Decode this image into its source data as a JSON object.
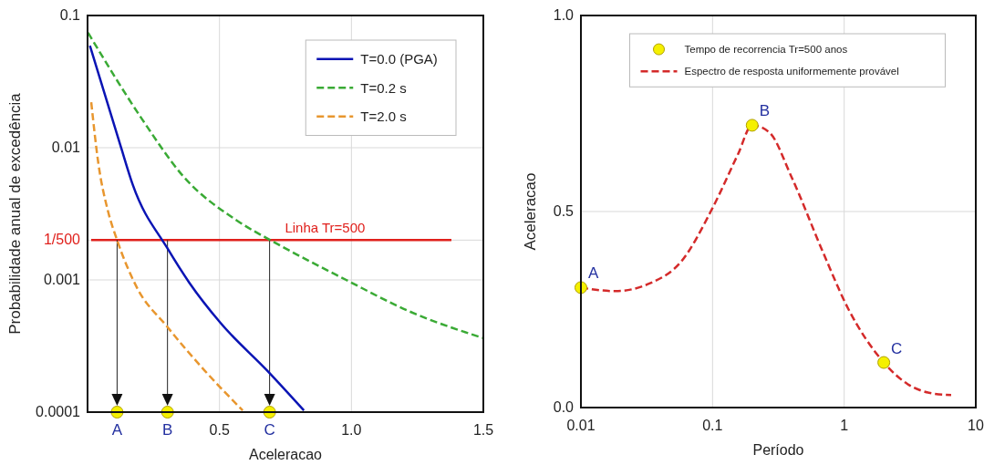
{
  "chart_data": [
    {
      "type": "line",
      "xlabel": "Aceleracao",
      "ylabel": "Probabilidade anual de excedência",
      "log": "y",
      "grid": true,
      "legend": "top right",
      "xlim": [
        0,
        1.5
      ],
      "xticks": [
        0.5,
        {
          "value": 1.0,
          "label": "1.0"
        },
        1.5
      ],
      "ylim": [
        0.0001,
        0.1
      ],
      "yticks": [
        0.1,
        0.01,
        {
          "value": 0.002,
          "label": "1/500"
        },
        0.001,
        0.0001
      ],
      "series": [
        {
          "name": "T=0.0 (PGA)",
          "color": "#0a14b4",
          "line_style": "solid",
          "x": [
            0.009,
            0.124,
            0.172,
            0.303,
            0.386,
            0.505,
            0.683,
            0.82
          ],
          "values": [
            0.059,
            0.0105,
            0.0052,
            0.00173,
            0.00095,
            0.00047,
            0.000204,
            0.000103
          ]
        },
        {
          "name": "T=0.2 s",
          "color": "#3aaa35",
          "line_style": "dashed",
          "x": [
            0.002,
            0.207,
            0.362,
            0.564,
            0.707,
            0.98,
            1.218,
            1.498
          ],
          "values": [
            0.074,
            0.0164,
            0.0061,
            0.00283,
            0.00193,
            0.001,
            0.00058,
            0.000364
          ]
        },
        {
          "name": "T=2.0 s",
          "color": "#e8962e",
          "line_style": "dashed",
          "x": [
            0.014,
            0.041,
            0.077,
            0.112,
            0.184,
            0.303,
            0.445,
            0.588
          ],
          "values": [
            0.0221,
            0.0076,
            0.00334,
            0.002,
            0.0009,
            0.00044,
            0.000205,
            0.000103
          ]
        },
        {
          "type": "scatter",
          "color": "#f5f000",
          "marker": "circle",
          "x": [
            0.112,
            0.303,
            0.69
          ],
          "values": [
            0.0001,
            0.0001,
            0.0001
          ]
        }
      ],
      "ref_lines": [
        {
          "axis": "y",
          "value": 0.002,
          "color": "#e0201c"
        }
      ],
      "annotations": [
        {
          "text": "Linha Tr=500",
          "x": 0.9,
          "y": 0.002
        },
        {
          "text": "A",
          "x": 0.112,
          "y": 0.0001
        },
        {
          "text": "B",
          "x": 0.303,
          "y": 0.0001
        },
        {
          "text": "C",
          "x": 0.69,
          "y": 0.0001
        }
      ]
    },
    {
      "type": "line",
      "xlabel": "Período",
      "ylabel": "Aceleracao",
      "log": "x",
      "grid": true,
      "legend": "top",
      "xlim": [
        0.01,
        10
      ],
      "xticks": [
        0.01,
        0.1,
        1,
        10
      ],
      "ylim": [
        0,
        1
      ],
      "yticks": [
        {
          "value": 0,
          "label": "0.0"
        },
        0.5,
        {
          "value": 1,
          "label": "1.0"
        }
      ],
      "series": [
        {
          "type": "scatter",
          "name": "Tempo de recorrencia Tr=500 anos",
          "color": "#f5f000",
          "marker": "circle",
          "x": [
            0.01,
            0.2,
            2.0
          ],
          "values": [
            0.306,
            0.72,
            0.115
          ]
        },
        {
          "name": "Espectro de resposta uniformemente provável",
          "color": "#d42a2a",
          "line_style": "dashed",
          "x": [
            0.01,
            0.0183,
            0.0335,
            0.058,
            0.1,
            0.156,
            0.2,
            0.27,
            0.397,
            0.689,
            1.07,
            2.0,
            3.03,
            4.71,
            6.5
          ],
          "values": [
            0.306,
            0.297,
            0.317,
            0.373,
            0.509,
            0.646,
            0.72,
            0.702,
            0.589,
            0.397,
            0.253,
            0.115,
            0.06,
            0.036,
            0.032
          ]
        }
      ],
      "annotations": [
        {
          "text": "A",
          "x": 0.01,
          "y": 0.306
        },
        {
          "text": "B",
          "x": 0.2,
          "y": 0.72
        },
        {
          "text": "C",
          "x": 2.0,
          "y": 0.115
        }
      ]
    }
  ]
}
